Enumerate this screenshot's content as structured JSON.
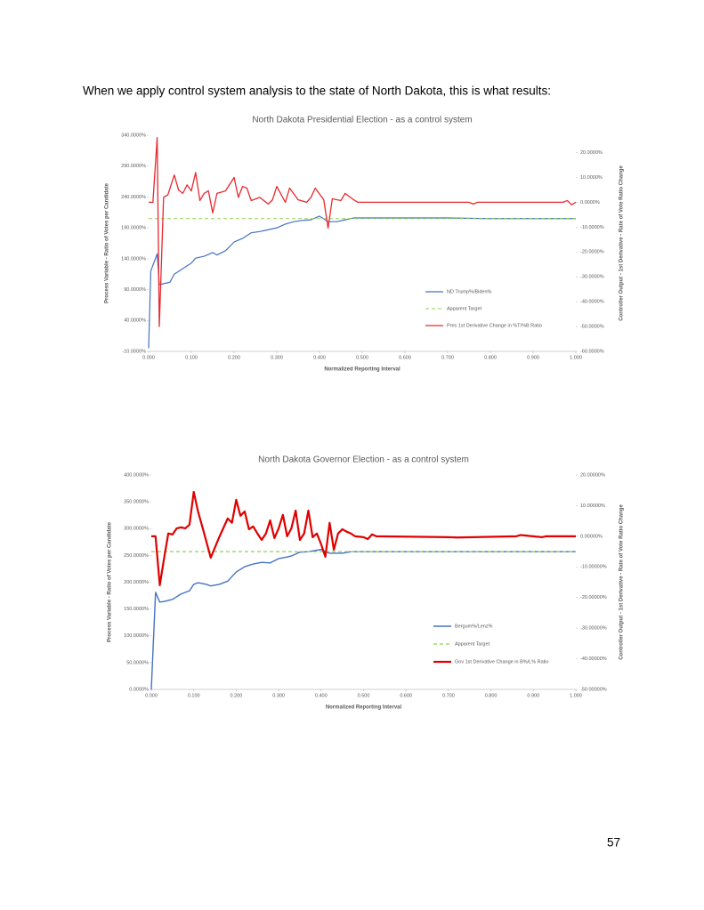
{
  "text": "When we apply control system analysis to the state of North Dakota, this is what results:",
  "page_number": "57",
  "chart_data": [
    {
      "type": "line",
      "title": "North Dakota Presidential Election - as a control system",
      "x_label": "Normalized Reporting Interval",
      "y_label": "Process Variable - Ratio of Votes per Candidate",
      "y2_label": "Controller Output - 1st Derivative - Rate of Vote Ratio Change",
      "xlim": [
        0,
        1
      ],
      "xticks": [
        {
          "value": 0,
          "label": "0.000"
        },
        {
          "value": 0.1,
          "label": "0.100"
        },
        {
          "value": 0.2,
          "label": "0.200"
        },
        {
          "value": 0.3,
          "label": "0.300"
        },
        {
          "value": 0.4,
          "label": "0.400"
        },
        {
          "value": 0.5,
          "label": "0.500"
        },
        {
          "value": 0.6,
          "label": "0.600"
        },
        {
          "value": 0.7,
          "label": "0.700"
        },
        {
          "value": 0.8,
          "label": "0.800"
        },
        {
          "value": 0.9,
          "label": "0.900"
        },
        {
          "value": 1,
          "label": "1.000"
        }
      ],
      "ylim": [
        -10,
        340
      ],
      "yticks": [
        {
          "value": -10,
          "label": "-10.0000%"
        },
        {
          "value": 40,
          "label": "40.0000%"
        },
        {
          "value": 90,
          "label": "90.0000%"
        },
        {
          "value": 140,
          "label": "140.0000%"
        },
        {
          "value": 190,
          "label": "190.0000%"
        },
        {
          "value": 240,
          "label": "240.0000%"
        },
        {
          "value": 290,
          "label": "290.0000%"
        },
        {
          "value": 340,
          "label": "340.0000%"
        }
      ],
      "y2lim": [
        -60,
        27
      ],
      "y2ticks": [
        {
          "value": -60,
          "label": "-60.0000%"
        },
        {
          "value": -50,
          "label": "-50.0000%"
        },
        {
          "value": -40,
          "label": "-40.0000%"
        },
        {
          "value": -30,
          "label": "-30.0000%"
        },
        {
          "value": -20,
          "label": "-20.0000%"
        },
        {
          "value": -10,
          "label": "-10.0000%"
        },
        {
          "value": 0,
          "label": "0.0000%"
        },
        {
          "value": 10,
          "label": "10.0000%"
        },
        {
          "value": 20,
          "label": "20.0000%"
        }
      ],
      "series": [
        {
          "name": "ND Trump%/Biden%",
          "color": "#4472c4",
          "x": [
            0,
            0.005,
            0.02,
            0.025,
            0.05,
            0.06,
            0.08,
            0.1,
            0.11,
            0.13,
            0.15,
            0.16,
            0.18,
            0.2,
            0.22,
            0.24,
            0.26,
            0.28,
            0.3,
            0.32,
            0.34,
            0.36,
            0.38,
            0.4,
            0.42,
            0.44,
            0.46,
            0.48,
            0.5,
            0.6,
            0.7,
            0.8,
            0.9,
            1.0
          ],
          "values": [
            -5,
            120,
            148,
            98,
            102,
            115,
            124,
            133,
            141,
            144,
            150,
            146,
            153,
            167,
            173,
            182,
            184,
            187,
            190,
            196,
            200,
            202,
            203,
            209,
            200,
            200,
            203,
            206,
            206,
            206,
            206,
            205,
            205,
            205
          ]
        },
        {
          "name": "Apparent Target",
          "color": "#92d050",
          "dashed": true,
          "x": [
            0,
            1
          ],
          "values": [
            205,
            205
          ]
        },
        {
          "name": "Pres 1st Derivative Change in %T/%B Ratio",
          "color": "#e8292e",
          "axis": "y2",
          "x": [
            0,
            0.01,
            0.02,
            0.025,
            0.035,
            0.045,
            0.06,
            0.07,
            0.08,
            0.09,
            0.1,
            0.11,
            0.12,
            0.13,
            0.14,
            0.15,
            0.16,
            0.18,
            0.2,
            0.21,
            0.22,
            0.23,
            0.24,
            0.26,
            0.28,
            0.29,
            0.3,
            0.32,
            0.33,
            0.35,
            0.37,
            0.38,
            0.39,
            0.41,
            0.42,
            0.43,
            0.45,
            0.46,
            0.48,
            0.49,
            0.75,
            0.76,
            0.77,
            0.97,
            0.98,
            0.99,
            1.0
          ],
          "values": [
            0,
            0,
            26,
            -50,
            2,
            3,
            11,
            5,
            3.6,
            7,
            4.6,
            12,
            0.7,
            3.6,
            4.6,
            -4.3,
            3.6,
            4.6,
            10,
            2,
            6.4,
            5.7,
            0.7,
            2,
            -0.7,
            1,
            6.4,
            0,
            5.7,
            1,
            0,
            2,
            5.7,
            1,
            -10.4,
            1.4,
            0.7,
            3.6,
            1,
            0,
            0,
            -0.7,
            0,
            0,
            0.7,
            -1,
            0
          ]
        }
      ]
    },
    {
      "type": "line",
      "title": "North Dakota Governor Election - as a control system",
      "x_label": "Normalized Reporting Interval",
      "y_label": "Process Variable - Ratio of Votes per Candidate",
      "y2_label": "Controller Output - 1st Derivative - Rate of Vote Ratio Change",
      "xlim": [
        0,
        1
      ],
      "xticks": [
        {
          "value": 0,
          "label": "0.000"
        },
        {
          "value": 0.1,
          "label": "0.100"
        },
        {
          "value": 0.2,
          "label": "0.200"
        },
        {
          "value": 0.3,
          "label": "0.300"
        },
        {
          "value": 0.4,
          "label": "0.400"
        },
        {
          "value": 0.5,
          "label": "0.500"
        },
        {
          "value": 0.6,
          "label": "0.600"
        },
        {
          "value": 0.7,
          "label": "0.700"
        },
        {
          "value": 0.8,
          "label": "0.800"
        },
        {
          "value": 0.9,
          "label": "0.900"
        },
        {
          "value": 1,
          "label": "1.000"
        }
      ],
      "ylim": [
        0,
        400
      ],
      "yticks": [
        {
          "value": 0,
          "label": "0.0000%"
        },
        {
          "value": 50,
          "label": "50.0000%"
        },
        {
          "value": 100,
          "label": "100.0000%"
        },
        {
          "value": 150,
          "label": "150.0000%"
        },
        {
          "value": 200,
          "label": "200.0000%"
        },
        {
          "value": 250,
          "label": "250.0000%"
        },
        {
          "value": 300,
          "label": "300.0000%"
        },
        {
          "value": 350,
          "label": "350.0000%"
        },
        {
          "value": 400,
          "label": "400.0000%"
        }
      ],
      "y2lim": [
        -50,
        20
      ],
      "y2ticks": [
        {
          "value": -50,
          "label": "-50.00000%"
        },
        {
          "value": -40,
          "label": "-40.00000%"
        },
        {
          "value": -30,
          "label": "-30.00000%"
        },
        {
          "value": -20,
          "label": "-20.00000%"
        },
        {
          "value": -10,
          "label": "-10.00000%"
        },
        {
          "value": 0,
          "label": "0.00000%"
        },
        {
          "value": 10,
          "label": "10.00000%"
        },
        {
          "value": 20,
          "label": "20.00000%"
        }
      ],
      "series": [
        {
          "name": "Bergum%/Lenz%",
          "color": "#4472c4",
          "x": [
            0,
            0.01,
            0.02,
            0.03,
            0.05,
            0.07,
            0.09,
            0.1,
            0.11,
            0.13,
            0.14,
            0.16,
            0.18,
            0.2,
            0.22,
            0.24,
            0.26,
            0.28,
            0.3,
            0.32,
            0.33,
            0.35,
            0.37,
            0.4,
            0.41,
            0.42,
            0.45,
            0.47,
            0.5,
            1.0
          ],
          "values": [
            0,
            181,
            163,
            164,
            168,
            178,
            184,
            196,
            199,
            196,
            193,
            196,
            202,
            219,
            229,
            234,
            237,
            236,
            244,
            247,
            249,
            256,
            257,
            261,
            257,
            254,
            254,
            257,
            257,
            257
          ]
        },
        {
          "name": "Apparent Target",
          "color": "#92d050",
          "dashed": true,
          "x": [
            0,
            1
          ],
          "values": [
            257,
            257
          ]
        },
        {
          "name": "Gov 1st Derivative Change in B%/L% Ratio",
          "color": "#e00000",
          "axis": "y2",
          "x": [
            0,
            0.01,
            0.02,
            0.03,
            0.04,
            0.05,
            0.06,
            0.07,
            0.08,
            0.09,
            0.1,
            0.11,
            0.12,
            0.14,
            0.16,
            0.18,
            0.19,
            0.2,
            0.21,
            0.22,
            0.23,
            0.24,
            0.25,
            0.26,
            0.27,
            0.28,
            0.29,
            0.3,
            0.31,
            0.32,
            0.33,
            0.34,
            0.35,
            0.36,
            0.37,
            0.38,
            0.39,
            0.4,
            0.41,
            0.42,
            0.43,
            0.44,
            0.45,
            0.46,
            0.47,
            0.48,
            0.5,
            0.51,
            0.52,
            0.53,
            0.7,
            0.72,
            0.86,
            0.87,
            0.92,
            0.93,
            1.0
          ],
          "values": [
            0,
            0,
            -16,
            -7.3,
            0.9,
            0.6,
            2.6,
            2.9,
            2.6,
            3.8,
            14.5,
            8.1,
            3.2,
            -7,
            -0.3,
            5.8,
            4.4,
            11.9,
            6.7,
            8.1,
            2.3,
            3.2,
            0.9,
            -1.2,
            0.9,
            5.2,
            -0.6,
            2.6,
            7,
            0,
            2.6,
            8.4,
            -1.2,
            0.9,
            8.4,
            -0.3,
            0.9,
            -2.6,
            -6.7,
            4.4,
            -4.4,
            0.9,
            2.3,
            1.5,
            0.9,
            0,
            -0.3,
            -0.9,
            0.6,
            0,
            -0.3,
            -0.4,
            0,
            0.4,
            -0.3,
            0,
            0
          ]
        }
      ]
    }
  ]
}
